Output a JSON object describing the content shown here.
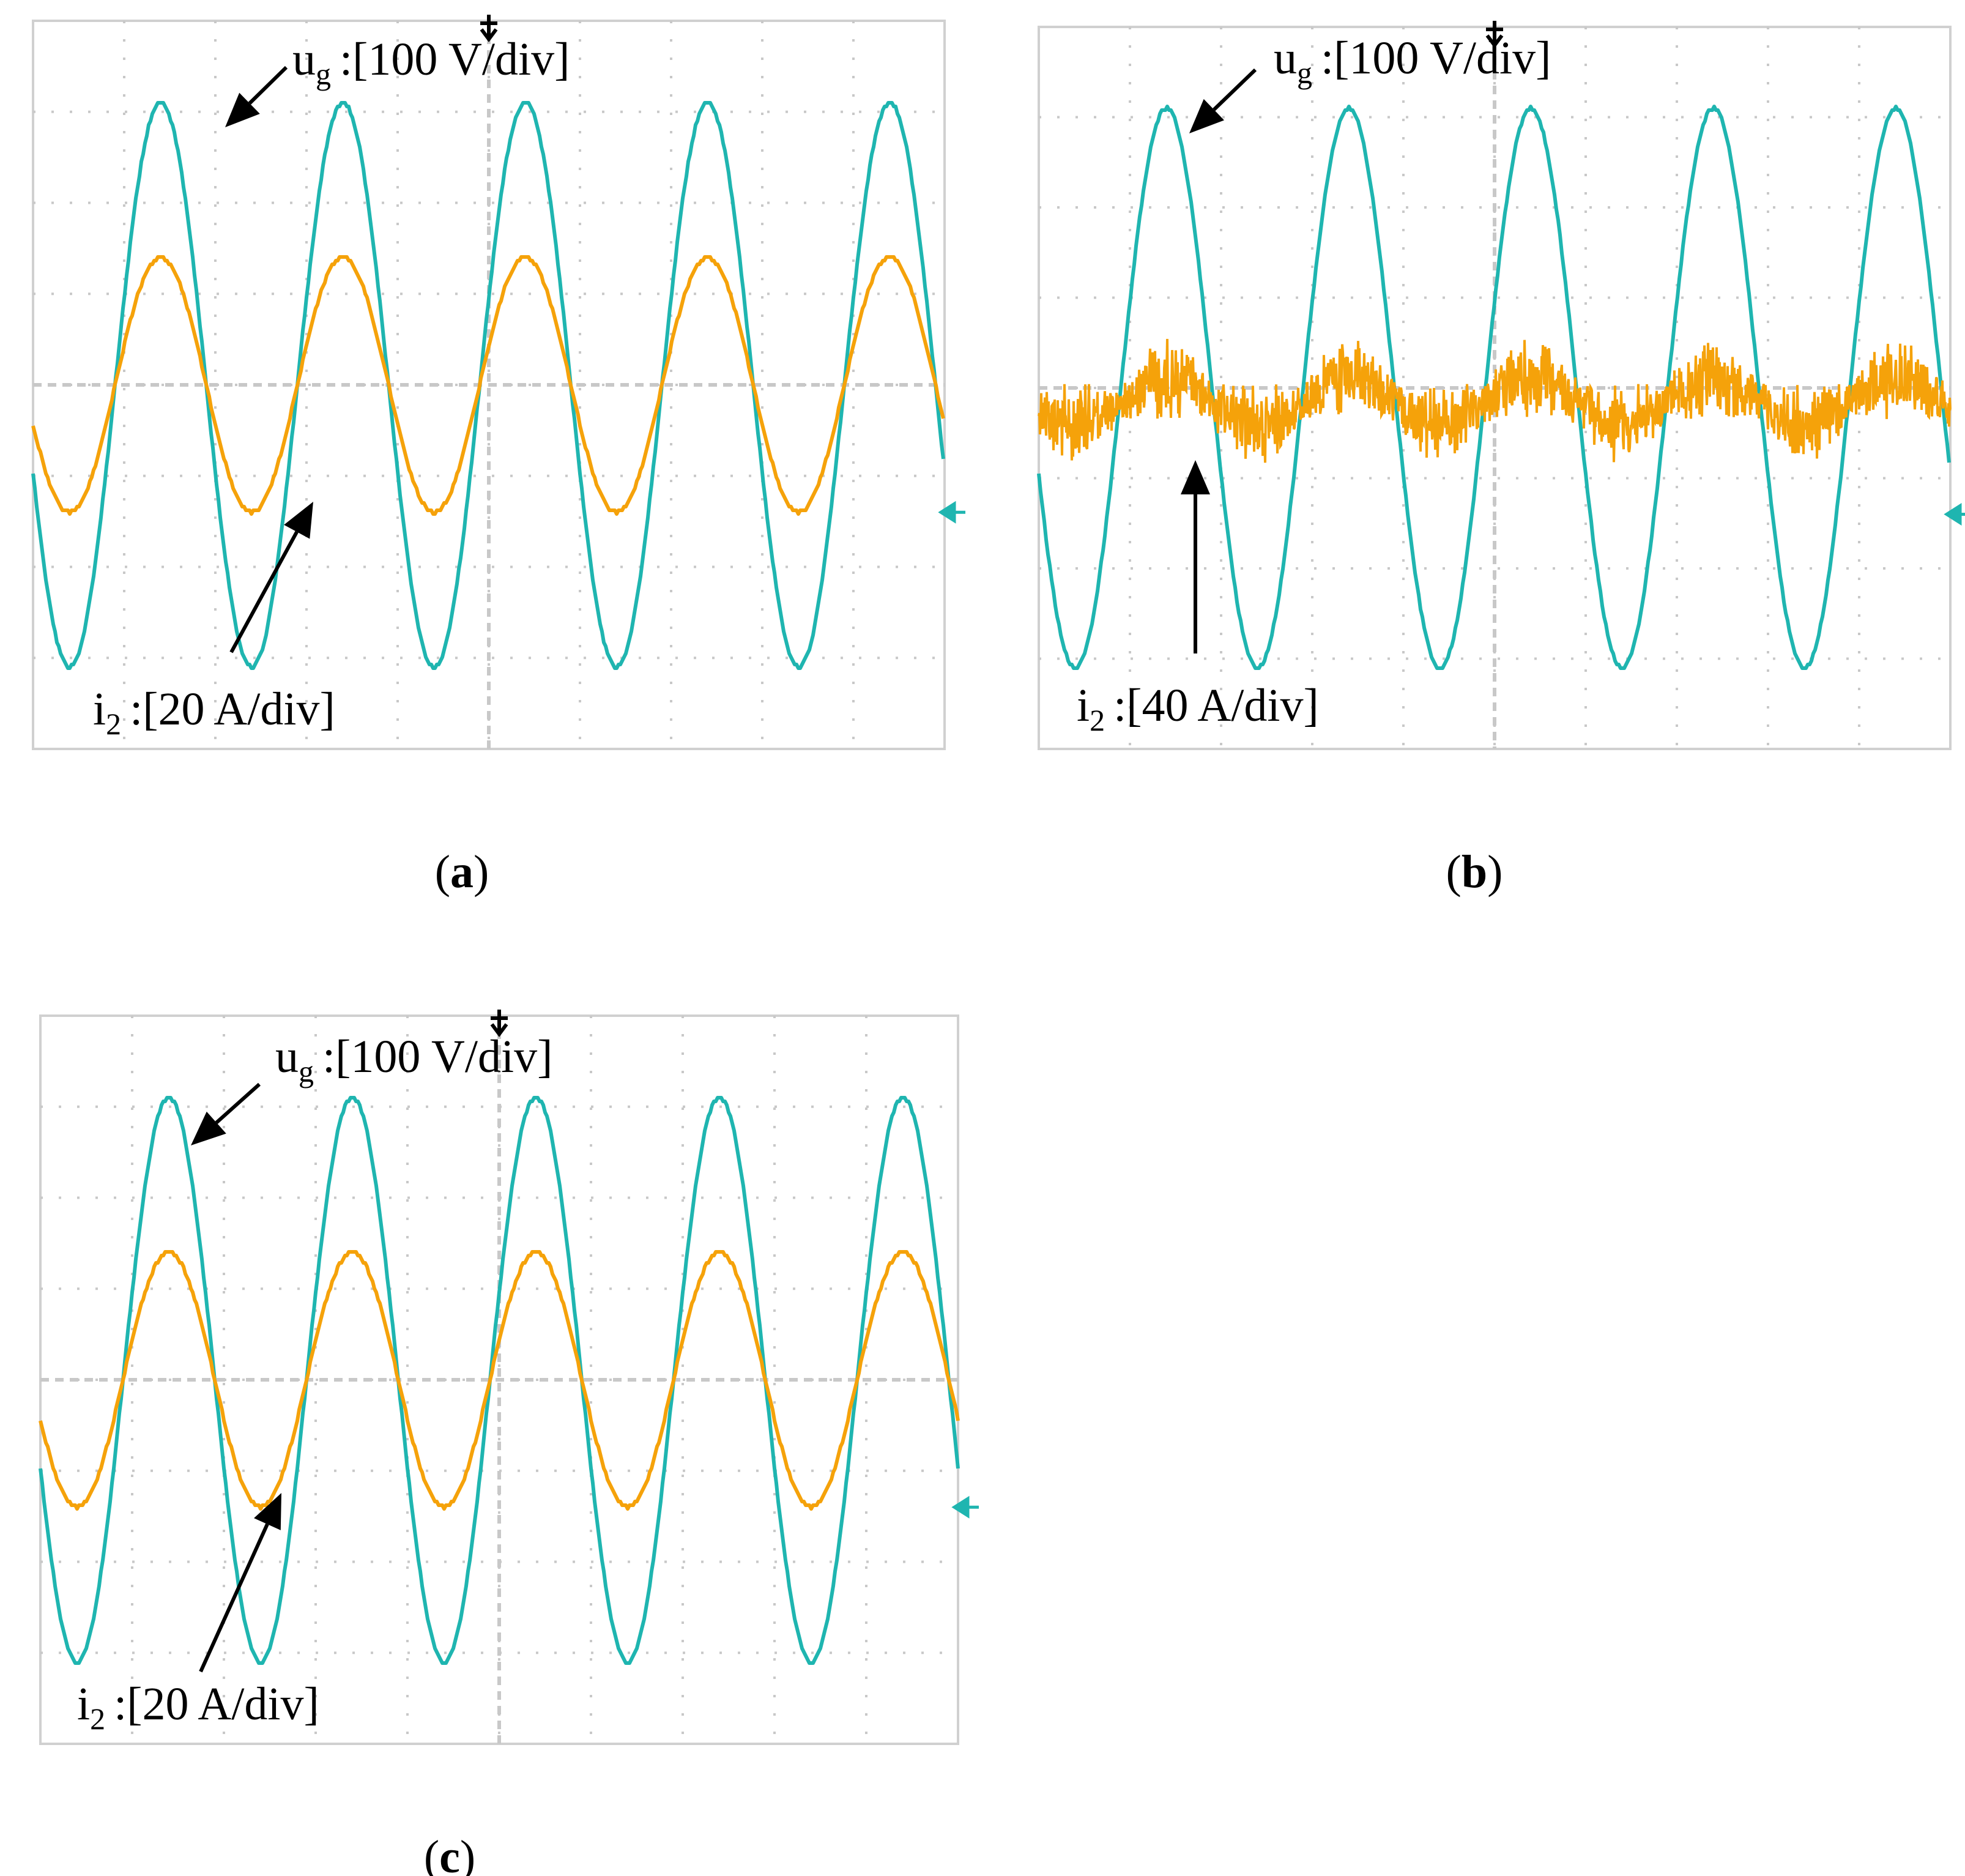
{
  "colors": {
    "voltage": "#1fb5b0",
    "current": "#f5a20a",
    "grid": "#c8c8c8",
    "frame": "#d0d0d0",
    "arrow": "#000000"
  },
  "chart_data": [
    {
      "panel": "a",
      "caption": "(a)",
      "type": "line",
      "divisions": {
        "x": 10,
        "y": 8
      },
      "cycles": 5,
      "noise": false,
      "series": [
        {
          "symbol": "u",
          "subscript": "g",
          "scale": ":[100 V/div]",
          "role": "voltage",
          "amplitude_div": 3.1,
          "offset_div": 0
        },
        {
          "symbol": "i",
          "subscript": "2",
          "scale": ":[20 A/div]",
          "role": "current",
          "amplitude_div": 1.4,
          "offset_div": 0
        }
      ]
    },
    {
      "panel": "b",
      "caption": "(b)",
      "type": "line",
      "divisions": {
        "x": 10,
        "y": 8
      },
      "cycles": 5,
      "noise": true,
      "series": [
        {
          "symbol": "u",
          "subscript": "g",
          "scale": ":[100 V/div]",
          "role": "voltage",
          "amplitude_div": 3.1,
          "offset_div": 0
        },
        {
          "symbol": "i",
          "subscript": "2",
          "scale": ":[40 A/div]",
          "role": "current",
          "amplitude_div": 0.25,
          "offset_div": -0.15
        }
      ]
    },
    {
      "panel": "c",
      "caption": "(c)",
      "type": "line",
      "divisions": {
        "x": 10,
        "y": 8
      },
      "cycles": 5,
      "noise": false,
      "series": [
        {
          "symbol": "u",
          "subscript": "g",
          "scale": ":[100 V/div]",
          "role": "voltage",
          "amplitude_div": 3.1,
          "offset_div": 0
        },
        {
          "symbol": "i",
          "subscript": "2",
          "scale": ":[20 A/div]",
          "role": "current",
          "amplitude_div": 1.4,
          "offset_div": 0
        }
      ]
    }
  ]
}
